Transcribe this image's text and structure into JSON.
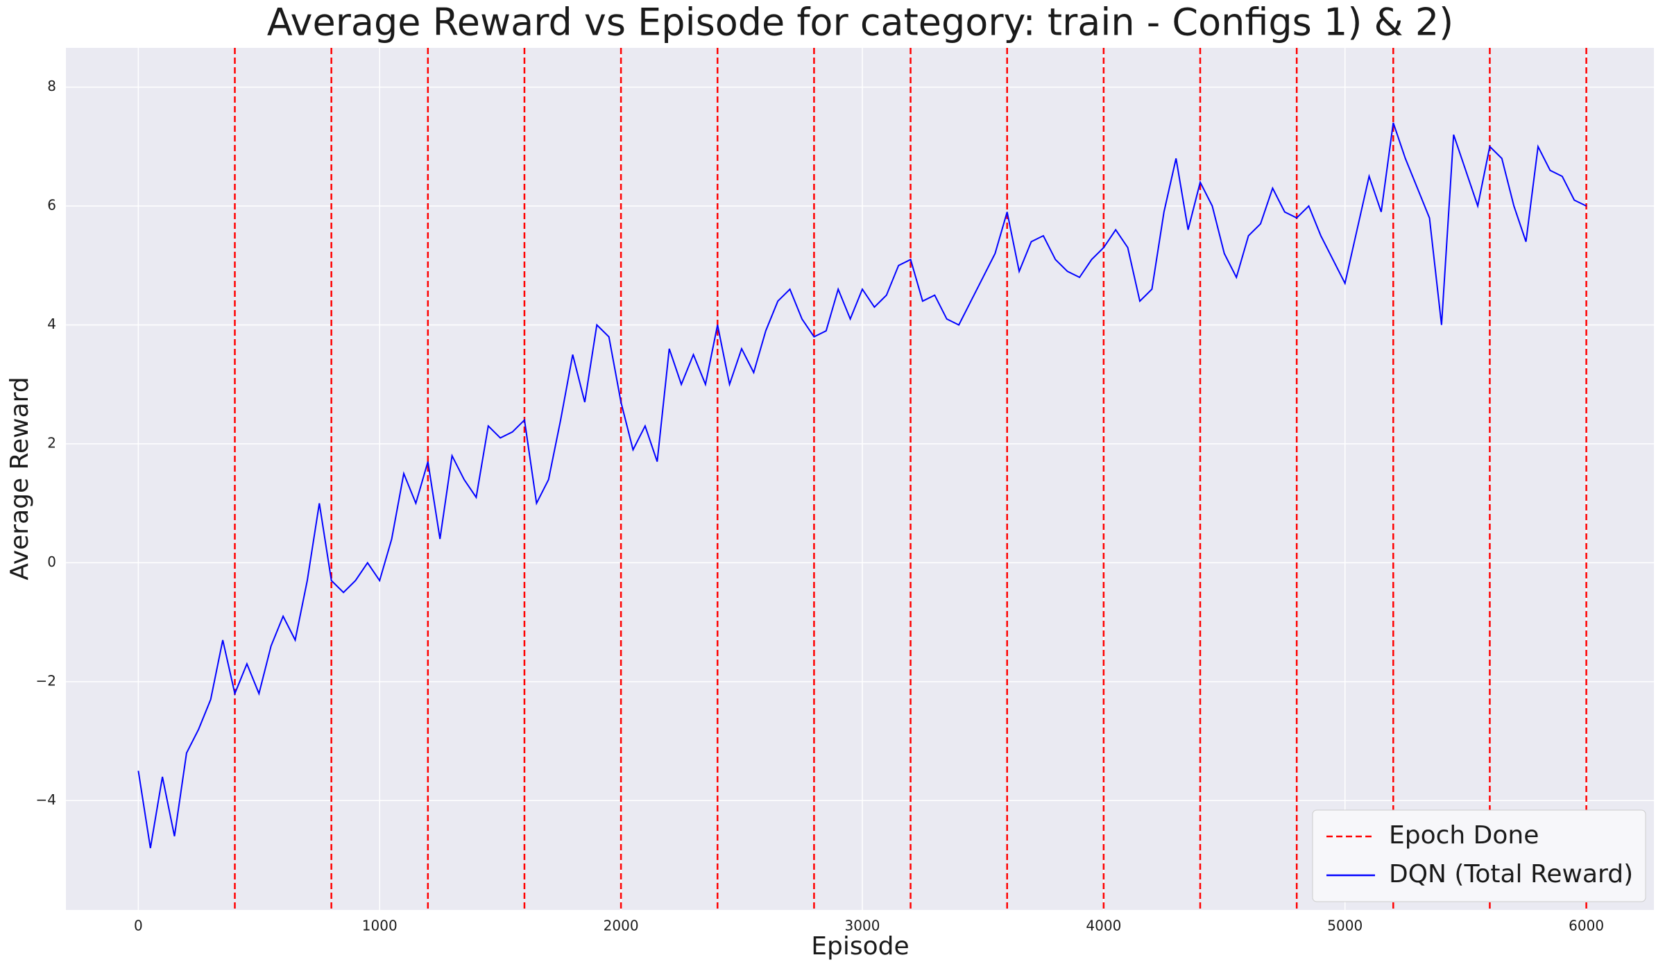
{
  "chart_data": {
    "type": "line",
    "title": "Average Reward vs Episode for category: train - Configs 1) & 2)",
    "x_label": "Episode",
    "y_label": "Average Reward",
    "xlim": [
      -300,
      6280
    ],
    "ylim": [
      -5.84,
      8.66
    ],
    "xticks": [
      0,
      1000,
      2000,
      3000,
      4000,
      5000,
      6000
    ],
    "yticks": [
      {
        "value": -4,
        "label": "−4"
      },
      {
        "value": -2,
        "label": "−2"
      },
      0,
      2,
      4,
      6,
      8
    ],
    "grid": true,
    "legend": "lower right",
    "vlines": {
      "name": "Epoch Done",
      "color": "#ff0000",
      "x": [
        400,
        800,
        1200,
        1600,
        2000,
        2400,
        2800,
        3200,
        3600,
        4000,
        4400,
        4800,
        5200,
        5600,
        6000
      ]
    },
    "x": [
      0,
      50,
      100,
      150,
      200,
      250,
      300,
      350,
      400,
      450,
      500,
      550,
      600,
      650,
      700,
      750,
      800,
      850,
      900,
      950,
      1000,
      1050,
      1100,
      1150,
      1200,
      1250,
      1300,
      1350,
      1400,
      1450,
      1500,
      1550,
      1600,
      1650,
      1700,
      1750,
      1800,
      1850,
      1900,
      1950,
      2000,
      2050,
      2100,
      2150,
      2200,
      2250,
      2300,
      2350,
      2400,
      2450,
      2500,
      2550,
      2600,
      2650,
      2700,
      2750,
      2800,
      2850,
      2900,
      2950,
      3000,
      3050,
      3100,
      3150,
      3200,
      3250,
      3300,
      3350,
      3400,
      3450,
      3500,
      3550,
      3600,
      3650,
      3700,
      3750,
      3800,
      3850,
      3900,
      3950,
      4000,
      4050,
      4100,
      4150,
      4200,
      4250,
      4300,
      4350,
      4400,
      4450,
      4500,
      4550,
      4600,
      4650,
      4700,
      4750,
      4800,
      4850,
      4900,
      4950,
      5000,
      5050,
      5100,
      5150,
      5200,
      5250,
      5300,
      5350,
      5400,
      5450,
      5500,
      5550,
      5600,
      5650,
      5700,
      5750,
      5800,
      5850,
      5900,
      5950,
      6000
    ],
    "series": [
      {
        "name": "DQN (Total Reward)",
        "color": "#0000ff",
        "values": [
          -3.5,
          -4.8,
          -3.6,
          -4.6,
          -3.2,
          -2.8,
          -2.3,
          -1.3,
          -2.2,
          -1.7,
          -2.2,
          -1.4,
          -0.9,
          -1.3,
          -0.3,
          1.0,
          -0.3,
          -0.5,
          -0.3,
          0.0,
          -0.3,
          0.4,
          1.5,
          1.0,
          1.7,
          0.4,
          1.8,
          1.4,
          1.1,
          2.3,
          2.1,
          2.2,
          2.4,
          1.0,
          1.4,
          2.4,
          3.5,
          2.7,
          4.0,
          3.8,
          2.7,
          1.9,
          2.3,
          1.7,
          3.6,
          3.0,
          3.5,
          3.0,
          4.0,
          3.0,
          3.6,
          3.2,
          3.9,
          4.4,
          4.6,
          4.1,
          3.8,
          3.9,
          4.6,
          4.1,
          4.6,
          4.3,
          4.5,
          5.0,
          5.1,
          4.4,
          4.5,
          4.1,
          4.0,
          4.4,
          4.8,
          5.2,
          5.9,
          4.9,
          5.4,
          5.5,
          5.1,
          4.9,
          4.8,
          5.1,
          5.3,
          5.6,
          5.3,
          4.4,
          4.6,
          5.9,
          6.8,
          5.6,
          6.4,
          6.0,
          5.2,
          4.8,
          5.5,
          5.7,
          6.3,
          5.9,
          5.8,
          6.0,
          5.5,
          5.1,
          4.7,
          5.6,
          6.5,
          5.9,
          7.4,
          6.8,
          6.3,
          5.8,
          4.0,
          7.2,
          6.6,
          6.0,
          7.0,
          6.8,
          6.0,
          5.4,
          7.0,
          6.6,
          6.5,
          6.1,
          6.0
        ]
      }
    ]
  }
}
